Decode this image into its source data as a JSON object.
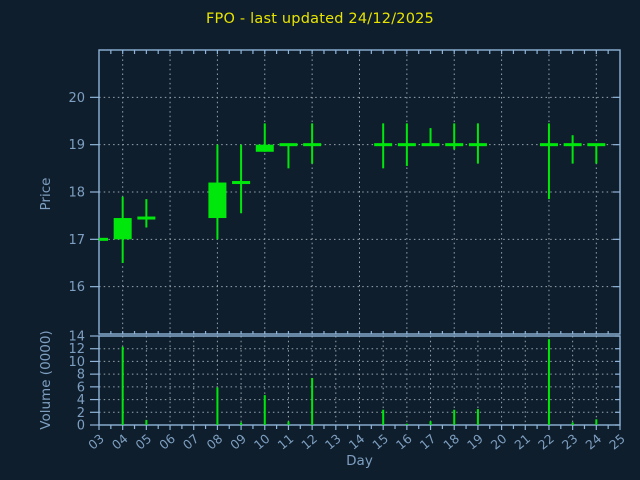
{
  "title": "FPO - last updated 24/12/2025",
  "colors": {
    "background": "#0e1e2d",
    "axis": "#8fb4d8",
    "text": "#7e9fc0",
    "title": "#e8e400",
    "grid": "#9aa5ae",
    "series": "#00e80b"
  },
  "axes": {
    "price": {
      "label": "Price",
      "tick_labels": [
        "16",
        "17",
        "18",
        "19",
        "20"
      ],
      "tick_values": [
        16,
        17,
        18,
        19,
        20
      ],
      "range": [
        15,
        21
      ]
    },
    "volume": {
      "label": "Volume (0000)",
      "tick_labels": [
        "0",
        "2",
        "4",
        "6",
        "8",
        "10",
        "12",
        "14"
      ],
      "tick_values": [
        0,
        2,
        4,
        6,
        8,
        10,
        12,
        14
      ],
      "range": [
        0,
        14
      ]
    },
    "x": {
      "label": "Day",
      "tick_labels": [
        "03",
        "04",
        "05",
        "06",
        "07",
        "08",
        "09",
        "10",
        "11",
        "12",
        "13",
        "14",
        "15",
        "16",
        "17",
        "18",
        "19",
        "20",
        "21",
        "22",
        "23",
        "24",
        "25"
      ],
      "tick_values": [
        3,
        4,
        5,
        6,
        7,
        8,
        9,
        10,
        11,
        12,
        13,
        14,
        15,
        16,
        17,
        18,
        19,
        20,
        21,
        22,
        23,
        24,
        25
      ],
      "range": [
        3,
        25
      ]
    }
  },
  "chart_data": [
    {
      "type": "candlestick",
      "title": "FPO - last updated 24/12/2025",
      "xlabel": "Day",
      "ylabel": "Price",
      "xlim": [
        3,
        25
      ],
      "ylim": [
        15,
        21
      ],
      "grid": "on",
      "x": [
        3,
        4,
        5,
        8,
        9,
        10,
        11,
        12,
        15,
        16,
        17,
        18,
        19,
        22,
        23,
        24
      ],
      "open": [
        17.0,
        17.0,
        17.45,
        17.45,
        18.2,
        18.85,
        19.0,
        19.0,
        19.0,
        19.0,
        19.0,
        19.0,
        19.0,
        19.0,
        19.0,
        19.0
      ],
      "high": [
        17.0,
        17.9,
        17.85,
        19.0,
        19.0,
        19.45,
        19.0,
        19.45,
        19.45,
        19.45,
        19.35,
        19.45,
        19.45,
        19.45,
        19.2,
        19.0
      ],
      "low": [
        17.0,
        16.5,
        17.25,
        17.0,
        17.55,
        18.85,
        18.5,
        18.6,
        18.5,
        18.55,
        19.0,
        18.9,
        18.6,
        17.85,
        18.6,
        18.6
      ],
      "close": [
        17.0,
        17.45,
        17.45,
        18.2,
        18.2,
        19.0,
        19.0,
        19.0,
        19.0,
        19.0,
        19.0,
        19.0,
        19.0,
        19.0,
        19.0,
        19.0
      ],
      "color": "#00e80b"
    },
    {
      "type": "bar",
      "xlabel": "Day",
      "ylabel": "Volume (0000)",
      "xlim": [
        3,
        25
      ],
      "ylim": [
        0,
        14
      ],
      "grid": "on",
      "x": [
        3,
        4,
        5,
        8,
        9,
        10,
        11,
        12,
        15,
        16,
        17,
        18,
        19,
        22,
        23,
        24
      ],
      "values": [
        0,
        12.3,
        0.8,
        5.9,
        0.4,
        4.7,
        0.55,
        7.4,
        2.4,
        0.2,
        0.6,
        2.4,
        2.5,
        13.5,
        0.4,
        0.9
      ],
      "color": "#00e80b"
    }
  ]
}
